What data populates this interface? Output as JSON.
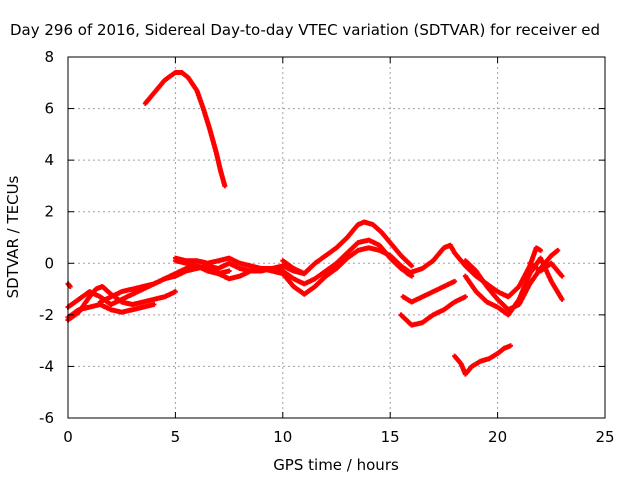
{
  "chart_data": {
    "type": "scatter",
    "title": "Day 296 of 2016, Sidereal Day-to-day VTEC variation (SDTVAR) for receiver ed",
    "xlabel": "GPS time / hours",
    "ylabel": "SDTVAR / TECUs",
    "xlim": [
      0,
      25
    ],
    "ylim": [
      -6,
      8
    ],
    "xticks": [
      0,
      5,
      10,
      15,
      20,
      25
    ],
    "yticks": [
      -6,
      -4,
      -2,
      0,
      2,
      4,
      6,
      8
    ],
    "grid": true,
    "marker_color": "#ff0000",
    "series": [
      {
        "points": [
          [
            0,
            -0.8
          ],
          [
            0.1,
            -0.9
          ]
        ]
      },
      {
        "points": [
          [
            0,
            -2.2
          ],
          [
            0.5,
            -1.9
          ],
          [
            1,
            -1.3
          ],
          [
            1.3,
            -1.0
          ],
          [
            1.6,
            -0.9
          ],
          [
            2,
            -1.2
          ],
          [
            2.5,
            -1.5
          ],
          [
            3,
            -1.6
          ],
          [
            3.5,
            -1.5
          ],
          [
            4,
            -1.4
          ],
          [
            4.5,
            -1.3
          ],
          [
            5,
            -1.1
          ]
        ]
      },
      {
        "points": [
          [
            0,
            -1.7
          ],
          [
            0.5,
            -1.4
          ],
          [
            1,
            -1.1
          ],
          [
            1.5,
            -1.3
          ],
          [
            2,
            -1.6
          ],
          [
            2.5,
            -1.4
          ],
          [
            3,
            -1.2
          ],
          [
            3.5,
            -1.0
          ],
          [
            4,
            -0.8
          ],
          [
            4.5,
            -0.6
          ],
          [
            5,
            -0.4
          ],
          [
            5.5,
            -0.2
          ],
          [
            6,
            -0.1
          ],
          [
            6.5,
            -0.3
          ],
          [
            7,
            -0.4
          ],
          [
            7.5,
            -0.3
          ]
        ]
      },
      {
        "points": [
          [
            0,
            -2.1
          ],
          [
            0.5,
            -1.8
          ],
          [
            1,
            -1.7
          ],
          [
            1.5,
            -1.6
          ],
          [
            2,
            -1.8
          ],
          [
            2.5,
            -1.9
          ],
          [
            3,
            -1.8
          ],
          [
            3.5,
            -1.7
          ],
          [
            4,
            -1.6
          ]
        ]
      },
      {
        "points": [
          [
            1.5,
            -1.5
          ],
          [
            2,
            -1.3
          ],
          [
            2.5,
            -1.1
          ],
          [
            3,
            -1.0
          ],
          [
            3.5,
            -0.9
          ],
          [
            4,
            -0.8
          ],
          [
            4.5,
            -0.6
          ],
          [
            5,
            -0.5
          ],
          [
            5.5,
            -0.3
          ],
          [
            6,
            -0.2
          ],
          [
            6.5,
            -0.1
          ],
          [
            7,
            -0.2
          ],
          [
            7.5,
            0.0
          ],
          [
            8,
            -0.2
          ],
          [
            8.5,
            -0.3
          ],
          [
            9,
            -0.3
          ],
          [
            9.5,
            -0.2
          ],
          [
            10,
            -0.1
          ],
          [
            10.5,
            -0.3
          ],
          [
            11,
            -0.4
          ]
        ]
      },
      {
        "points": [
          [
            3.6,
            6.2
          ],
          [
            4,
            6.6
          ],
          [
            4.5,
            7.1
          ],
          [
            5,
            7.4
          ],
          [
            5.3,
            7.4
          ],
          [
            5.6,
            7.2
          ],
          [
            6,
            6.7
          ],
          [
            6.3,
            6.0
          ],
          [
            6.6,
            5.2
          ],
          [
            6.9,
            4.3
          ],
          [
            7.1,
            3.6
          ],
          [
            7.3,
            3.0
          ]
        ]
      },
      {
        "points": [
          [
            5,
            0.2
          ],
          [
            5.5,
            0.1
          ],
          [
            6,
            0.1
          ],
          [
            6.5,
            0.0
          ],
          [
            7,
            0.1
          ],
          [
            7.5,
            0.2
          ],
          [
            8,
            0.0
          ],
          [
            8.5,
            -0.1
          ],
          [
            9,
            -0.2
          ],
          [
            9.5,
            -0.3
          ],
          [
            10,
            -0.4
          ],
          [
            10.5,
            -0.9
          ],
          [
            11,
            -1.2
          ],
          [
            11.5,
            -0.9
          ],
          [
            12,
            -0.5
          ],
          [
            12.5,
            -0.2
          ],
          [
            13,
            0.2
          ],
          [
            13.5,
            0.5
          ],
          [
            14,
            0.6
          ],
          [
            14.5,
            0.5
          ],
          [
            15,
            0.3
          ],
          [
            15.5,
            -0.1
          ],
          [
            16,
            -0.4
          ]
        ]
      },
      {
        "points": [
          [
            5,
            0.1
          ],
          [
            5.5,
            0.0
          ],
          [
            6,
            -0.1
          ],
          [
            6.5,
            -0.2
          ],
          [
            7,
            -0.4
          ],
          [
            7.5,
            -0.6
          ],
          [
            8,
            -0.5
          ],
          [
            8.5,
            -0.3
          ],
          [
            9,
            -0.2
          ],
          [
            9.5,
            -0.2
          ],
          [
            10,
            -0.3
          ],
          [
            10.5,
            -0.6
          ],
          [
            11,
            -0.8
          ],
          [
            11.5,
            -0.6
          ],
          [
            12,
            -0.3
          ],
          [
            12.5,
            0.0
          ],
          [
            13,
            0.4
          ],
          [
            13.5,
            0.8
          ],
          [
            14,
            0.9
          ],
          [
            14.5,
            0.7
          ],
          [
            15,
            0.2
          ],
          [
            15.5,
            -0.2
          ],
          [
            16,
            -0.5
          ]
        ]
      },
      {
        "points": [
          [
            10,
            0.1
          ],
          [
            10.5,
            -0.2
          ],
          [
            11,
            -0.4
          ],
          [
            11.5,
            0.0
          ],
          [
            12,
            0.3
          ],
          [
            12.5,
            0.6
          ],
          [
            13,
            1.0
          ],
          [
            13.5,
            1.5
          ],
          [
            13.8,
            1.6
          ],
          [
            14.2,
            1.5
          ],
          [
            14.6,
            1.2
          ],
          [
            15,
            0.8
          ],
          [
            15.5,
            0.3
          ],
          [
            16,
            -0.1
          ]
        ]
      },
      {
        "points": [
          [
            15.5,
            -2.0
          ],
          [
            16,
            -2.4
          ],
          [
            16.5,
            -2.3
          ],
          [
            17,
            -2.0
          ],
          [
            17.5,
            -1.8
          ],
          [
            18,
            -1.5
          ],
          [
            18.5,
            -1.3
          ]
        ]
      },
      {
        "points": [
          [
            15.6,
            -1.3
          ],
          [
            16,
            -1.5
          ],
          [
            16.5,
            -1.3
          ],
          [
            17,
            -1.1
          ],
          [
            17.5,
            -0.9
          ],
          [
            18,
            -0.7
          ]
        ]
      },
      {
        "points": [
          [
            15.8,
            -0.4
          ],
          [
            16.5,
            -0.2
          ],
          [
            17,
            0.1
          ],
          [
            17.5,
            0.6
          ],
          [
            17.8,
            0.7
          ],
          [
            18,
            0.4
          ],
          [
            18.5,
            -0.1
          ],
          [
            19,
            -0.5
          ],
          [
            19.5,
            -0.8
          ],
          [
            20,
            -1.1
          ],
          [
            20.5,
            -1.3
          ],
          [
            21,
            -0.9
          ],
          [
            21.5,
            -0.1
          ],
          [
            21.8,
            0.6
          ],
          [
            22,
            0.5
          ]
        ]
      },
      {
        "points": [
          [
            18.5,
            0.1
          ],
          [
            19,
            -0.3
          ],
          [
            19.5,
            -0.9
          ],
          [
            20,
            -1.4
          ],
          [
            20.5,
            -1.8
          ],
          [
            21,
            -1.6
          ],
          [
            21.5,
            -0.8
          ],
          [
            22,
            -0.2
          ],
          [
            22.5,
            0.3
          ],
          [
            22.8,
            0.5
          ]
        ]
      },
      {
        "points": [
          [
            18.5,
            -0.5
          ],
          [
            19,
            -1.1
          ],
          [
            19.5,
            -1.5
          ],
          [
            20,
            -1.7
          ],
          [
            20.5,
            -2.0
          ],
          [
            21,
            -1.4
          ],
          [
            21.5,
            -0.4
          ],
          [
            22,
            0.2
          ],
          [
            22.5,
            -0.7
          ],
          [
            23,
            -1.4
          ]
        ]
      },
      {
        "points": [
          [
            18,
            -3.6
          ],
          [
            18.3,
            -3.9
          ],
          [
            18.5,
            -4.3
          ],
          [
            18.8,
            -4.0
          ],
          [
            19.2,
            -3.8
          ],
          [
            19.6,
            -3.7
          ],
          [
            20,
            -3.5
          ],
          [
            20.3,
            -3.3
          ],
          [
            20.6,
            -3.2
          ]
        ]
      },
      {
        "points": [
          [
            21.5,
            0.0
          ],
          [
            22,
            -0.3
          ],
          [
            22.5,
            0.0
          ],
          [
            23,
            -0.5
          ]
        ]
      }
    ]
  }
}
